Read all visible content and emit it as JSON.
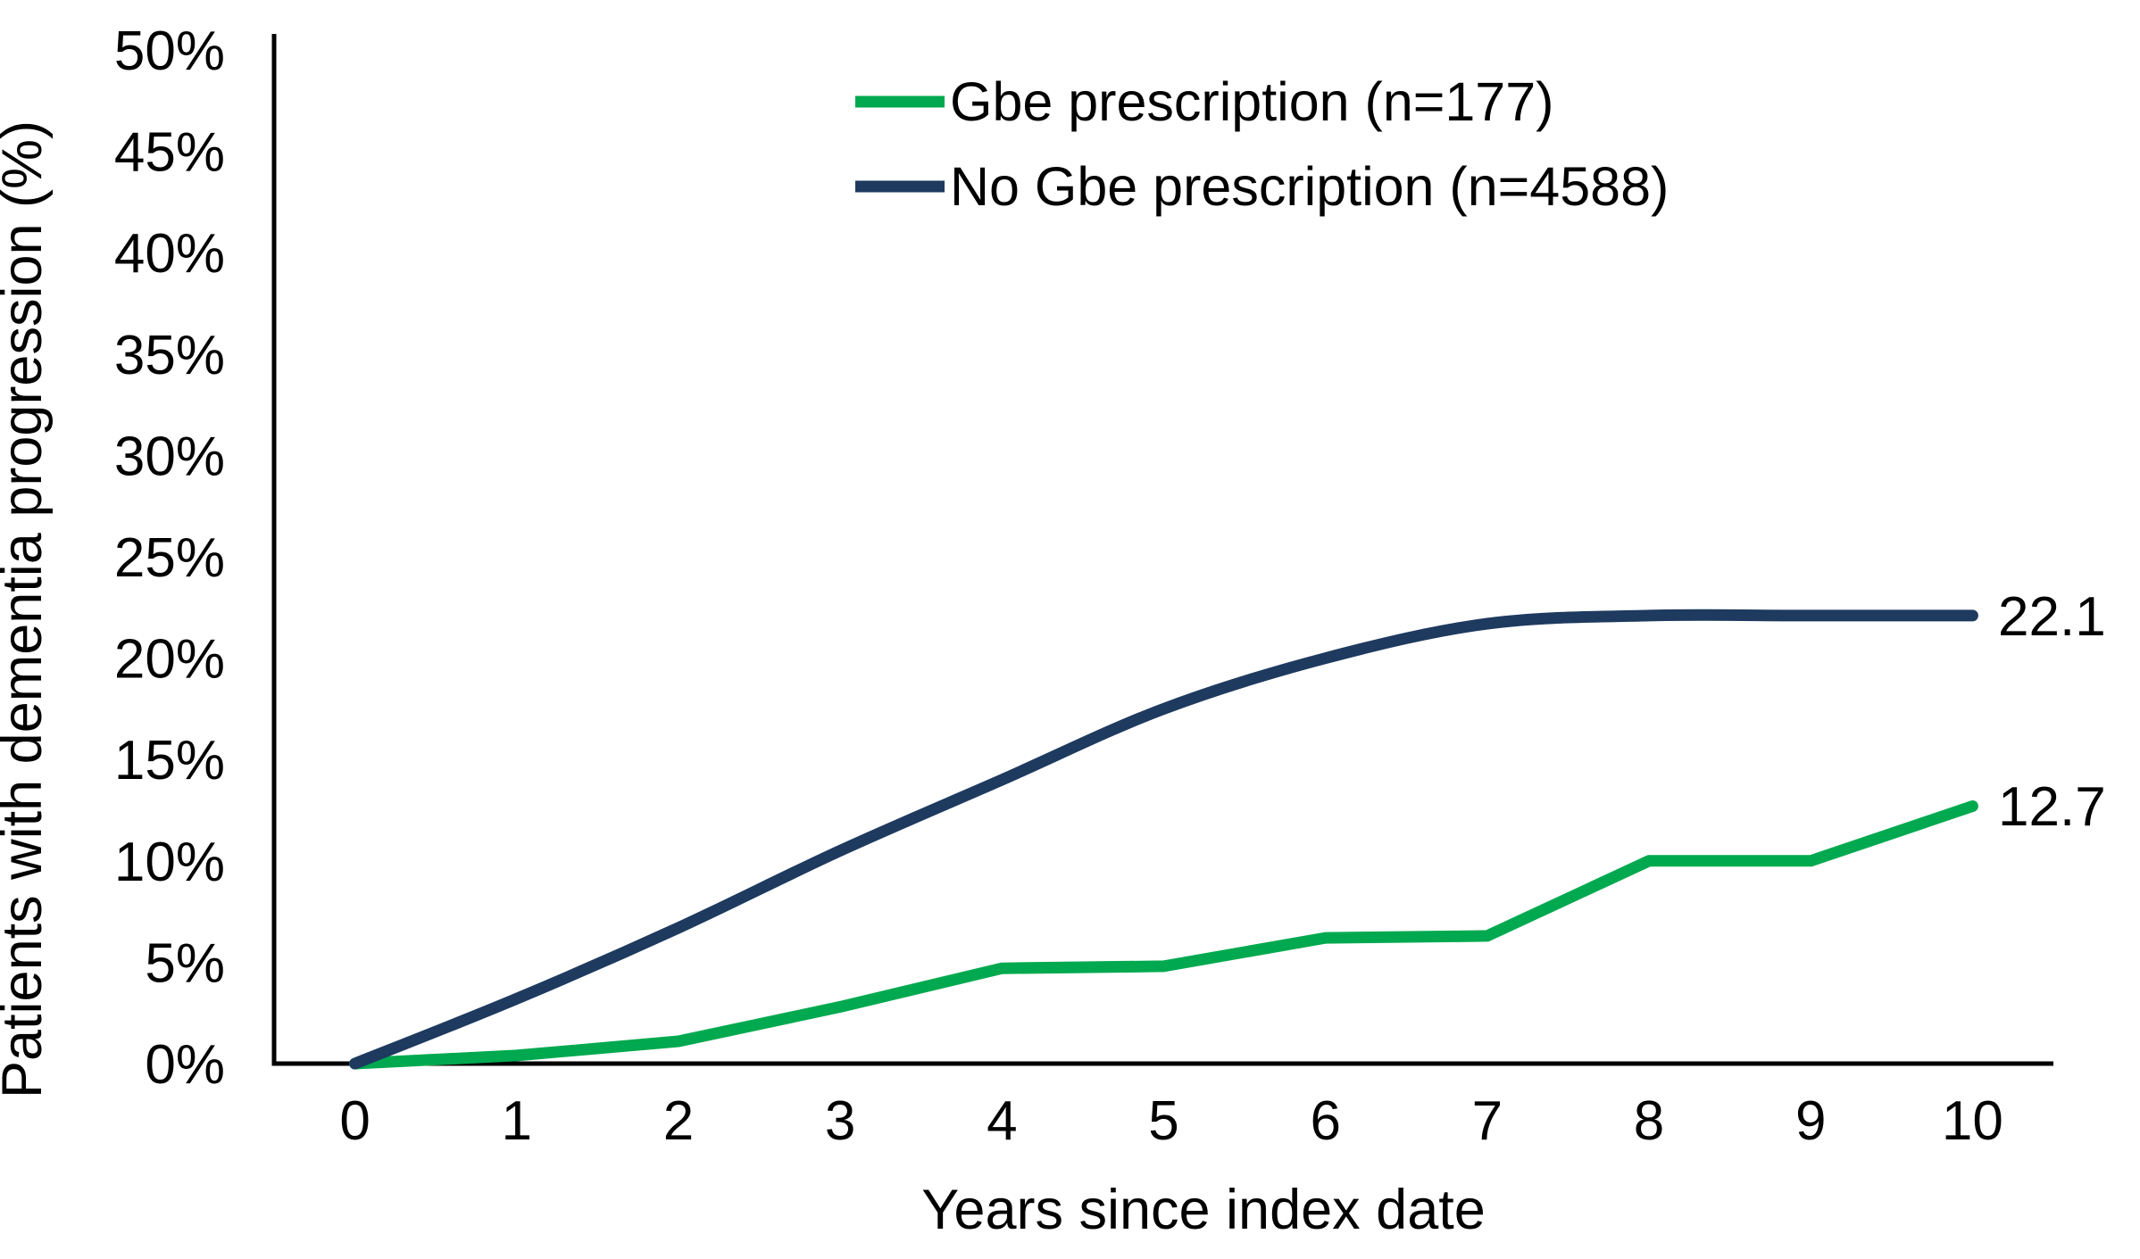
{
  "figure": {
    "background": "#ffffff",
    "text_color": "#000000",
    "axis_color": "#000000"
  },
  "chart_data": {
    "type": "line",
    "title": "",
    "xlabel": "Years since index date",
    "ylabel": "Patients with dementia progression (%)",
    "x": [
      0,
      1,
      2,
      3,
      4,
      5,
      6,
      7,
      8,
      9,
      10
    ],
    "x_tick_labels": [
      "0",
      "1",
      "2",
      "3",
      "4",
      "5",
      "6",
      "7",
      "8",
      "9",
      "10"
    ],
    "y_tick_labels": [
      "0%",
      "5%",
      "10%",
      "15%",
      "20%",
      "25%",
      "30%",
      "35%",
      "40%",
      "45%",
      "50%"
    ],
    "ylim": [
      0,
      50
    ],
    "grid": false,
    "legend_position": "top-center-inside",
    "series": [
      {
        "name": "Gbe prescription (n=177)",
        "color": "#00A94F",
        "line_style": "straight",
        "values": [
          0,
          0.4,
          1.1,
          2.8,
          4.7,
          4.8,
          6.2,
          6.3,
          10.0,
          10.0,
          12.7
        ],
        "end_label": "12.7"
      },
      {
        "name": "No Gbe prescription (n=4588)",
        "color": "#1E3A5F",
        "line_style": "smooth",
        "values": [
          0,
          3.2,
          6.7,
          10.5,
          14.0,
          17.5,
          20.0,
          21.7,
          22.1,
          22.1,
          22.1
        ],
        "end_label": "22.1"
      }
    ]
  }
}
